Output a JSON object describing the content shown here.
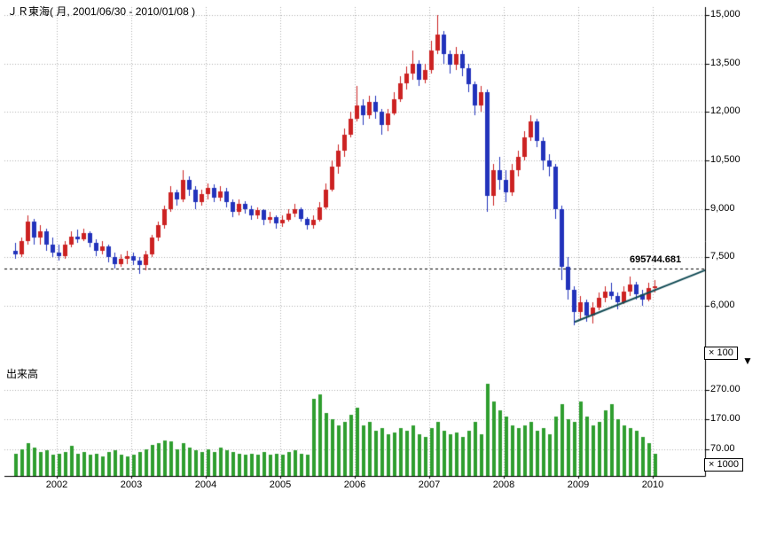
{
  "chart_data": {
    "type": "candlestick",
    "title": "ＪＲ東海( 月, 2001/06/30 - 2010/01/08 )",
    "volume_panel_title": "出来高",
    "price_axis": {
      "side": "right",
      "unit": "× 100",
      "ticks": [
        15000,
        13500,
        12000,
        10500,
        9000,
        7500,
        6000
      ],
      "tick_labels": [
        "15,000",
        "13,500",
        "12,000",
        "10,500",
        "9,000",
        "7,500",
        "6,000"
      ]
    },
    "volume_axis": {
      "side": "right",
      "unit": "× 1000",
      "ticks": [
        270,
        170,
        70
      ],
      "tick_labels": [
        "270.00",
        "170.00",
        "70.00"
      ]
    },
    "x_axis": {
      "year_labels": [
        "2002",
        "2003",
        "2004",
        "2005",
        "2006",
        "2007",
        "2008",
        "2009",
        "2010"
      ]
    },
    "level_line": {
      "price": 7150,
      "label": "695744.681",
      "style": "dashed"
    },
    "trend_line": {
      "start_month": "2008-12",
      "start_index": 90,
      "start_price": 5500,
      "end_price": 7100
    },
    "columns": [
      "month",
      "open",
      "high",
      "low",
      "close",
      "volume_x1000"
    ],
    "months": [
      [
        "2001-06",
        7700,
        7950,
        7450,
        7600,
        55
      ],
      [
        "2001-07",
        7600,
        8100,
        7500,
        8000,
        70
      ],
      [
        "2001-08",
        8000,
        8800,
        7900,
        8600,
        90
      ],
      [
        "2001-09",
        8600,
        8700,
        7900,
        8100,
        75
      ],
      [
        "2001-10",
        8100,
        8500,
        7900,
        8300,
        60
      ],
      [
        "2001-11",
        8300,
        8400,
        7700,
        7900,
        65
      ],
      [
        "2001-12",
        7900,
        8100,
        7500,
        7650,
        50
      ],
      [
        "2002-01",
        7650,
        7900,
        7400,
        7550,
        55
      ],
      [
        "2002-02",
        7550,
        8000,
        7450,
        7900,
        60
      ],
      [
        "2002-03",
        7900,
        8300,
        7800,
        8150,
        80
      ],
      [
        "2002-04",
        8150,
        8350,
        7950,
        8050,
        55
      ],
      [
        "2002-05",
        8050,
        8400,
        8000,
        8250,
        60
      ],
      [
        "2002-06",
        8250,
        8300,
        7800,
        7950,
        50
      ],
      [
        "2002-07",
        7950,
        8050,
        7550,
        7700,
        55
      ],
      [
        "2002-08",
        7700,
        8000,
        7600,
        7850,
        45
      ],
      [
        "2002-09",
        7850,
        7900,
        7350,
        7500,
        60
      ],
      [
        "2002-10",
        7500,
        7650,
        7150,
        7300,
        65
      ],
      [
        "2002-11",
        7300,
        7600,
        7200,
        7450,
        50
      ],
      [
        "2002-12",
        7450,
        7700,
        7300,
        7550,
        45
      ],
      [
        "2003-01",
        7550,
        7650,
        7250,
        7400,
        50
      ],
      [
        "2003-02",
        7400,
        7500,
        7000,
        7250,
        60
      ],
      [
        "2003-03",
        7250,
        7700,
        7100,
        7600,
        70
      ],
      [
        "2003-04",
        7600,
        8200,
        7500,
        8100,
        85
      ],
      [
        "2003-05",
        8100,
        8600,
        8000,
        8500,
        90
      ],
      [
        "2003-06",
        8500,
        9100,
        8400,
        9000,
        100
      ],
      [
        "2003-07",
        9000,
        9700,
        8900,
        9500,
        95
      ],
      [
        "2003-08",
        9500,
        9600,
        9100,
        9300,
        70
      ],
      [
        "2003-09",
        9300,
        10200,
        9200,
        9900,
        90
      ],
      [
        "2003-10",
        9900,
        10000,
        9400,
        9600,
        75
      ],
      [
        "2003-11",
        9600,
        9700,
        9000,
        9200,
        65
      ],
      [
        "2003-12",
        9200,
        9600,
        9100,
        9450,
        60
      ],
      [
        "2004-01",
        9450,
        9800,
        9300,
        9650,
        70
      ],
      [
        "2004-02",
        9650,
        9750,
        9200,
        9350,
        60
      ],
      [
        "2004-03",
        9350,
        9700,
        9250,
        9550,
        75
      ],
      [
        "2004-04",
        9550,
        9650,
        9050,
        9200,
        65
      ],
      [
        "2004-05",
        9200,
        9300,
        8750,
        8900,
        60
      ],
      [
        "2004-06",
        8900,
        9300,
        8800,
        9150,
        55
      ],
      [
        "2004-07",
        9150,
        9250,
        8850,
        9000,
        50
      ],
      [
        "2004-08",
        9000,
        9100,
        8650,
        8800,
        55
      ],
      [
        "2004-09",
        8800,
        9050,
        8700,
        8950,
        50
      ],
      [
        "2004-10",
        8950,
        9000,
        8500,
        8650,
        60
      ],
      [
        "2004-11",
        8650,
        8900,
        8550,
        8750,
        50
      ],
      [
        "2004-12",
        8750,
        8800,
        8400,
        8550,
        55
      ],
      [
        "2005-01",
        8550,
        8800,
        8450,
        8650,
        50
      ],
      [
        "2005-02",
        8650,
        9000,
        8600,
        8850,
        60
      ],
      [
        "2005-03",
        8850,
        9150,
        8750,
        9000,
        65
      ],
      [
        "2005-04",
        9000,
        9050,
        8600,
        8700,
        55
      ],
      [
        "2005-05",
        8700,
        8750,
        8350,
        8500,
        50
      ],
      [
        "2005-06",
        8500,
        8800,
        8400,
        8650,
        240
      ],
      [
        "2005-07",
        8650,
        9200,
        8600,
        9050,
        255
      ],
      [
        "2005-08",
        9050,
        9800,
        9000,
        9600,
        190
      ],
      [
        "2005-09",
        9600,
        10500,
        9550,
        10300,
        170
      ],
      [
        "2005-10",
        10300,
        11000,
        10100,
        10800,
        150
      ],
      [
        "2005-11",
        10800,
        11500,
        10600,
        11300,
        160
      ],
      [
        "2005-12",
        11300,
        12000,
        11200,
        11800,
        185
      ],
      [
        "2006-01",
        11800,
        12800,
        11700,
        12200,
        210
      ],
      [
        "2006-02",
        12200,
        12400,
        11600,
        11900,
        150
      ],
      [
        "2006-03",
        11900,
        12500,
        11800,
        12300,
        160
      ],
      [
        "2006-04",
        12300,
        12500,
        11800,
        12000,
        130
      ],
      [
        "2006-05",
        12000,
        12100,
        11300,
        11600,
        140
      ],
      [
        "2006-06",
        11600,
        12100,
        11400,
        11950,
        120
      ],
      [
        "2006-07",
        11950,
        12600,
        11900,
        12400,
        125
      ],
      [
        "2006-08",
        12400,
        13100,
        12300,
        12900,
        140
      ],
      [
        "2006-09",
        12900,
        13400,
        12700,
        13200,
        130
      ],
      [
        "2006-10",
        13200,
        13900,
        13000,
        13500,
        150
      ],
      [
        "2006-11",
        13500,
        13600,
        12800,
        13000,
        120
      ],
      [
        "2006-12",
        13000,
        13500,
        12900,
        13300,
        110
      ],
      [
        "2007-01",
        13300,
        14200,
        13200,
        13900,
        140
      ],
      [
        "2007-02",
        13900,
        15000,
        13800,
        14400,
        160
      ],
      [
        "2007-03",
        14400,
        14500,
        13500,
        13800,
        130
      ],
      [
        "2007-04",
        13800,
        13900,
        13200,
        13450,
        120
      ],
      [
        "2007-05",
        13450,
        14000,
        13300,
        13800,
        125
      ],
      [
        "2007-06",
        13800,
        13900,
        13100,
        13350,
        110
      ],
      [
        "2007-07",
        13350,
        13500,
        12600,
        12850,
        130
      ],
      [
        "2007-08",
        12850,
        12950,
        11900,
        12200,
        160
      ],
      [
        "2007-09",
        12200,
        12800,
        12000,
        12600,
        120
      ],
      [
        "2007-10",
        12600,
        12700,
        8900,
        9400,
        290
      ],
      [
        "2007-11",
        9400,
        10400,
        9100,
        10200,
        230
      ],
      [
        "2007-12",
        10200,
        10600,
        9600,
        9900,
        200
      ],
      [
        "2008-01",
        9900,
        10200,
        9200,
        9500,
        180
      ],
      [
        "2008-02",
        9500,
        10400,
        9400,
        10200,
        150
      ],
      [
        "2008-03",
        10200,
        10800,
        10000,
        10600,
        140
      ],
      [
        "2008-04",
        10600,
        11400,
        10500,
        11200,
        150
      ],
      [
        "2008-05",
        11200,
        11900,
        11100,
        11700,
        160
      ],
      [
        "2008-06",
        11700,
        11800,
        10900,
        11100,
        130
      ],
      [
        "2008-07",
        11100,
        11200,
        10200,
        10500,
        140
      ],
      [
        "2008-08",
        10500,
        10700,
        10000,
        10300,
        120
      ],
      [
        "2008-09",
        10300,
        10400,
        8700,
        9000,
        180
      ],
      [
        "2008-10",
        9000,
        9100,
        6800,
        7200,
        220
      ],
      [
        "2008-11",
        7200,
        7500,
        6200,
        6500,
        170
      ],
      [
        "2008-12",
        6500,
        6600,
        5400,
        5800,
        160
      ],
      [
        "2009-01",
        5800,
        6300,
        5600,
        6100,
        230
      ],
      [
        "2009-02",
        6100,
        6200,
        5500,
        5700,
        180
      ],
      [
        "2009-03",
        5700,
        6100,
        5450,
        5950,
        150
      ],
      [
        "2009-04",
        5950,
        6400,
        5850,
        6250,
        160
      ],
      [
        "2009-05",
        6250,
        6600,
        6100,
        6450,
        200
      ],
      [
        "2009-06",
        6450,
        6700,
        6200,
        6300,
        220
      ],
      [
        "2009-07",
        6300,
        6400,
        5900,
        6100,
        170
      ],
      [
        "2009-08",
        6100,
        6600,
        6050,
        6450,
        150
      ],
      [
        "2009-09",
        6450,
        6900,
        6300,
        6650,
        140
      ],
      [
        "2009-10",
        6650,
        6750,
        6200,
        6350,
        130
      ],
      [
        "2009-11",
        6350,
        6500,
        6000,
        6200,
        110
      ],
      [
        "2009-12",
        6200,
        6700,
        6150,
        6550,
        90
      ],
      [
        "2010-01",
        6550,
        6800,
        6400,
        6600,
        55
      ]
    ]
  },
  "icons": {
    "down_arrow": "▼"
  },
  "colors": {
    "up": "#cc2222",
    "down": "#2233bb",
    "volume": "#2f9e2f",
    "grid": "#b0b0b0",
    "axis": "#000000",
    "trend": "#114b55",
    "level": "#000000",
    "background": "#ffffff"
  }
}
